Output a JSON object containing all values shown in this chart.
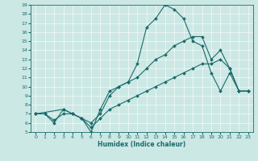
{
  "title": "",
  "xlabel": "Humidex (Indice chaleur)",
  "background_color": "#cce8e4",
  "line_color": "#1a6b6b",
  "xlim": [
    -0.5,
    23.5
  ],
  "ylim": [
    5,
    19
  ],
  "xticks": [
    0,
    1,
    2,
    3,
    4,
    5,
    6,
    7,
    8,
    9,
    10,
    11,
    12,
    13,
    14,
    15,
    16,
    17,
    18,
    19,
    20,
    21,
    22,
    23
  ],
  "yticks": [
    5,
    6,
    7,
    8,
    9,
    10,
    11,
    12,
    13,
    14,
    15,
    16,
    17,
    18,
    19
  ],
  "curve1_x": [
    0,
    1,
    2,
    3,
    4,
    5,
    6,
    7,
    8,
    9,
    10,
    11,
    12,
    13,
    14,
    15,
    16,
    17,
    18,
    19,
    20,
    21,
    22,
    23
  ],
  "curve1_y": [
    7.0,
    7.0,
    6.0,
    7.5,
    7.0,
    6.5,
    5.0,
    7.5,
    9.5,
    10.0,
    10.5,
    12.5,
    16.5,
    17.5,
    19.0,
    18.5,
    17.5,
    15.0,
    14.5,
    11.5,
    9.5,
    11.5,
    9.5,
    9.5
  ],
  "curve2_x": [
    0,
    3,
    4,
    5,
    6,
    7,
    8,
    9,
    10,
    11,
    12,
    13,
    14,
    15,
    16,
    17,
    18,
    19,
    20,
    21,
    22,
    23
  ],
  "curve2_y": [
    7.0,
    7.5,
    7.0,
    6.5,
    6.0,
    7.0,
    9.0,
    10.0,
    10.5,
    11.0,
    12.0,
    13.0,
    13.5,
    14.5,
    15.0,
    15.5,
    15.5,
    13.0,
    14.0,
    12.0,
    9.5,
    9.5
  ],
  "curve3_x": [
    0,
    1,
    2,
    3,
    4,
    5,
    6,
    7,
    8,
    9,
    10,
    11,
    12,
    13,
    14,
    15,
    16,
    17,
    18,
    19,
    20,
    21,
    22,
    23
  ],
  "curve3_y": [
    7.0,
    7.0,
    6.3,
    7.0,
    7.0,
    6.5,
    5.5,
    6.5,
    7.5,
    8.0,
    8.5,
    9.0,
    9.5,
    10.0,
    10.5,
    11.0,
    11.5,
    12.0,
    12.5,
    12.5,
    13.0,
    12.0,
    9.5,
    9.5
  ]
}
